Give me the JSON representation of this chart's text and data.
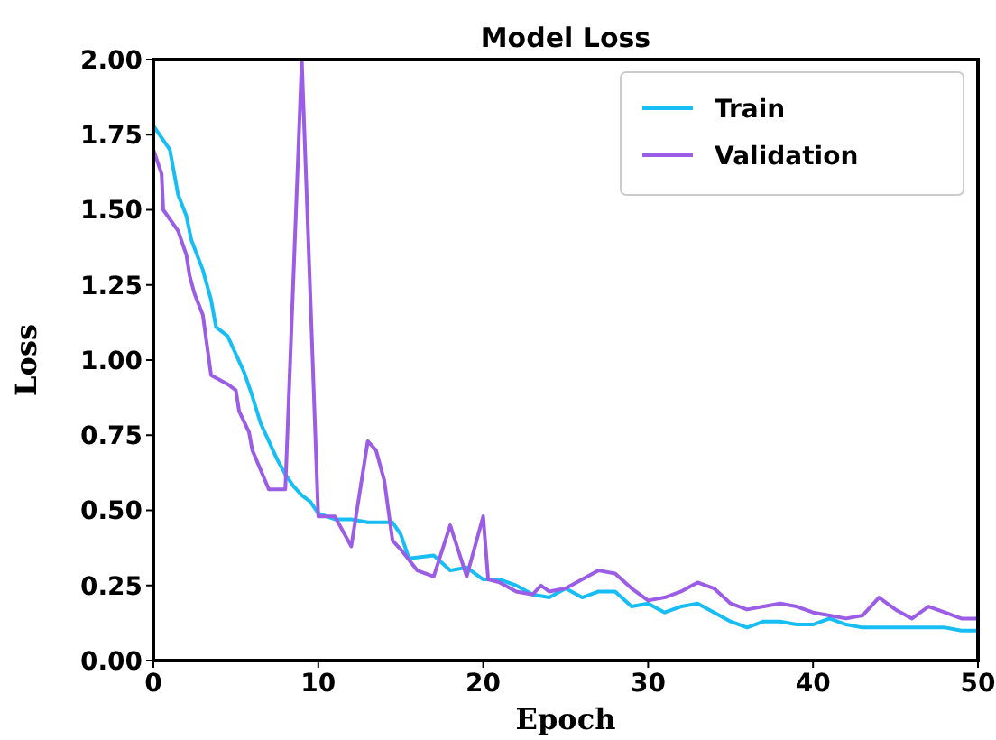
{
  "chart_data": {
    "type": "line",
    "title": "Model Loss",
    "xlabel": "Epoch",
    "ylabel": "Loss",
    "xlim": [
      0,
      50
    ],
    "xticks": [
      0,
      10,
      20,
      30,
      40,
      50
    ],
    "ylim": [
      0,
      2
    ],
    "yticks": [
      {
        "value": 0,
        "label": "0.00"
      },
      {
        "value": 0.25,
        "label": "0.25"
      },
      {
        "value": 0.5,
        "label": "0.50"
      },
      {
        "value": 0.75,
        "label": "0.75"
      },
      {
        "value": 1,
        "label": "1.00"
      },
      {
        "value": 1.25,
        "label": "1.25"
      },
      {
        "value": 1.5,
        "label": "1.50"
      },
      {
        "value": 1.75,
        "label": "1.75"
      },
      {
        "value": 2,
        "label": "2.00"
      }
    ],
    "grid": false,
    "legend": "top right",
    "marker": "none",
    "line_style": "solid",
    "series": [
      {
        "name": "Train",
        "color": "#17bef5",
        "x": [
          0,
          1,
          1.5,
          2,
          2.3,
          3,
          3.5,
          3.8,
          4.5,
          5,
          5.5,
          6,
          6.5,
          7,
          7.5,
          8,
          8.5,
          9,
          9.5,
          10,
          11,
          12,
          13,
          14,
          14.5,
          15,
          15.5,
          17,
          18,
          19,
          20,
          21,
          22,
          23,
          24,
          25,
          26,
          27,
          28,
          29,
          30,
          31,
          32,
          33,
          34,
          35,
          36,
          37,
          38,
          39,
          40,
          41,
          42,
          43,
          44,
          45,
          46,
          47,
          48,
          49,
          50
        ],
        "values": [
          1.78,
          1.7,
          1.55,
          1.48,
          1.4,
          1.3,
          1.2,
          1.11,
          1.08,
          1.02,
          0.96,
          0.88,
          0.79,
          0.73,
          0.67,
          0.62,
          0.58,
          0.55,
          0.53,
          0.49,
          0.47,
          0.47,
          0.46,
          0.46,
          0.46,
          0.42,
          0.34,
          0.35,
          0.3,
          0.31,
          0.27,
          0.27,
          0.25,
          0.22,
          0.21,
          0.24,
          0.21,
          0.23,
          0.23,
          0.18,
          0.19,
          0.16,
          0.18,
          0.19,
          0.16,
          0.13,
          0.11,
          0.13,
          0.13,
          0.12,
          0.12,
          0.14,
          0.12,
          0.11,
          0.11,
          0.11,
          0.11,
          0.11,
          0.11,
          0.1,
          0.1
        ]
      },
      {
        "name": "Validation",
        "color": "#9b5de5",
        "x": [
          0,
          0.5,
          0.6,
          1.5,
          2,
          2.2,
          2.5,
          3,
          3.5,
          4.5,
          5,
          5.2,
          5.8,
          6,
          7,
          8,
          9,
          10,
          11,
          12,
          13,
          13.5,
          14,
          14.5,
          15,
          16,
          17,
          18,
          19,
          20,
          20.3,
          21,
          22,
          23,
          23.5,
          24,
          25,
          26,
          27,
          28,
          29,
          30,
          31,
          32,
          33,
          34,
          35,
          36,
          37,
          38,
          39,
          40,
          41,
          42,
          43,
          44,
          45,
          46,
          47,
          48,
          49,
          50
        ],
        "values": [
          1.7,
          1.62,
          1.5,
          1.43,
          1.35,
          1.28,
          1.22,
          1.15,
          0.95,
          0.92,
          0.9,
          0.83,
          0.76,
          0.7,
          0.57,
          0.57,
          2.0,
          0.48,
          0.48,
          0.38,
          0.73,
          0.7,
          0.6,
          0.4,
          0.37,
          0.3,
          0.28,
          0.45,
          0.28,
          0.48,
          0.27,
          0.26,
          0.23,
          0.22,
          0.25,
          0.23,
          0.24,
          0.27,
          0.3,
          0.29,
          0.24,
          0.2,
          0.21,
          0.23,
          0.26,
          0.24,
          0.19,
          0.17,
          0.18,
          0.19,
          0.18,
          0.16,
          0.15,
          0.14,
          0.15,
          0.21,
          0.17,
          0.14,
          0.18,
          0.16,
          0.14,
          0.14
        ]
      }
    ]
  }
}
